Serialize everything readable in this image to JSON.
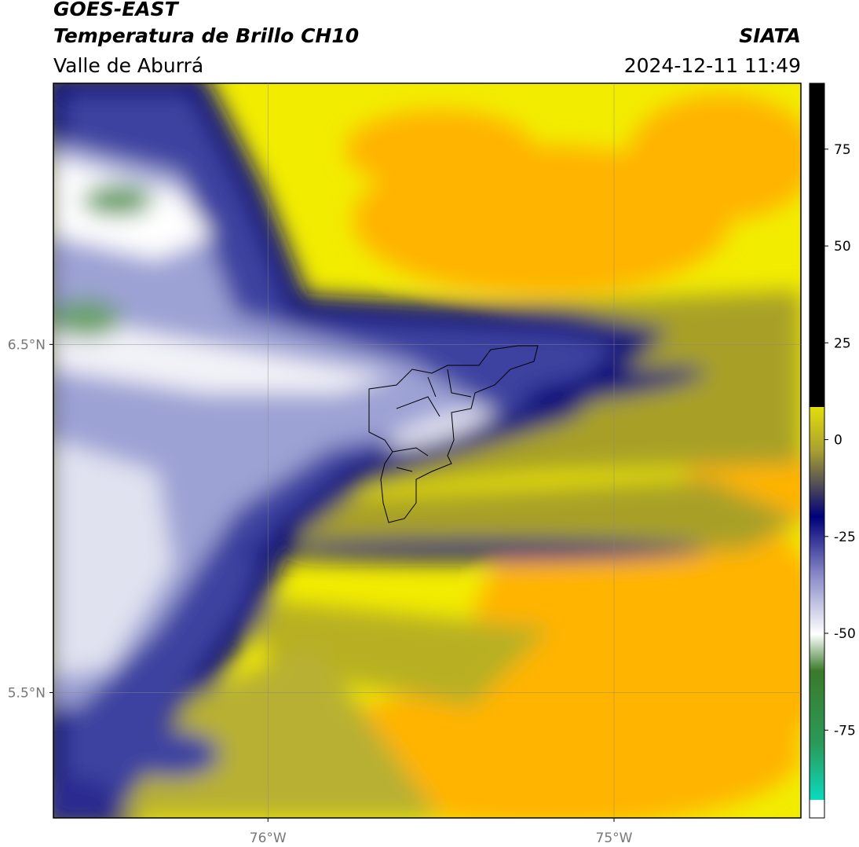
{
  "header": {
    "title": "GOES-EAST",
    "subtitle": "Temperatura de Brillo CH10",
    "region": "Valle de Aburrá",
    "source": "SIATA",
    "timestamp": "2024-12-11 11:49"
  },
  "map": {
    "xlim": [
      -76.62,
      -74.46
    ],
    "ylim": [
      5.14,
      7.25
    ],
    "xticks": [
      {
        "value": -76,
        "label": "76°W"
      },
      {
        "value": -75,
        "label": "75°W"
      }
    ],
    "yticks": [
      {
        "value": 6.5,
        "label": "6.5°N"
      },
      {
        "value": 5.5,
        "label": "5.5°N"
      }
    ],
    "grid": true
  },
  "colorbar": {
    "lim": [
      -93,
      92
    ],
    "ticks": [
      75,
      50,
      25,
      0,
      -25,
      -50,
      -75
    ]
  }
}
